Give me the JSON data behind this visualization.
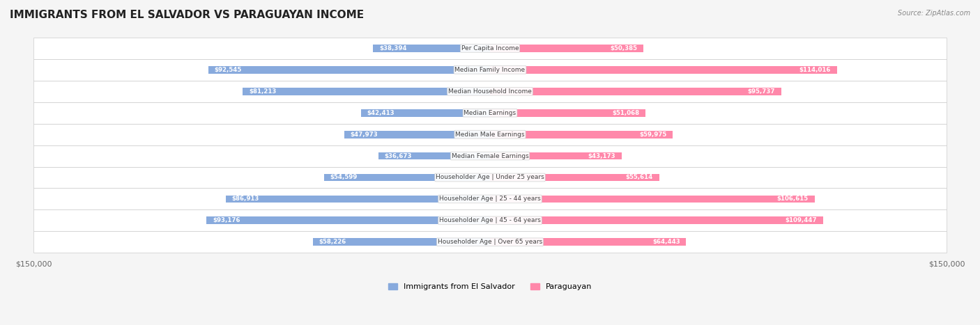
{
  "title": "IMMIGRANTS FROM EL SALVADOR VS PARAGUAYAN INCOME",
  "source": "Source: ZipAtlas.com",
  "categories": [
    "Per Capita Income",
    "Median Family Income",
    "Median Household Income",
    "Median Earnings",
    "Median Male Earnings",
    "Median Female Earnings",
    "Householder Age | Under 25 years",
    "Householder Age | 25 - 44 years",
    "Householder Age | 45 - 64 years",
    "Householder Age | Over 65 years"
  ],
  "el_salvador_values": [
    38394,
    92545,
    81213,
    42413,
    47973,
    36673,
    54599,
    86913,
    93176,
    58226
  ],
  "paraguayan_values": [
    50385,
    114016,
    95737,
    51068,
    59975,
    43173,
    55614,
    106615,
    109447,
    64443
  ],
  "el_salvador_labels": [
    "$38,394",
    "$92,545",
    "$81,213",
    "$42,413",
    "$47,973",
    "$36,673",
    "$54,599",
    "$86,913",
    "$93,176",
    "$58,226"
  ],
  "paraguayan_labels": [
    "$50,385",
    "$114,016",
    "$95,737",
    "$51,068",
    "$59,975",
    "$43,173",
    "$55,614",
    "$106,615",
    "$109,447",
    "$64,443"
  ],
  "el_salvador_color": "#88AADD",
  "paraguayan_color": "#FF88AA",
  "el_salvador_color_dark": "#5577BB",
  "paraguayan_color_dark": "#EE5577",
  "max_value": 150000,
  "legend_el_salvador": "Immigrants from El Salvador",
  "legend_paraguayan": "Paraguayan",
  "background_color": "#f5f5f5",
  "row_background": "#ffffff",
  "row_alt_background": "#f0f0f0"
}
